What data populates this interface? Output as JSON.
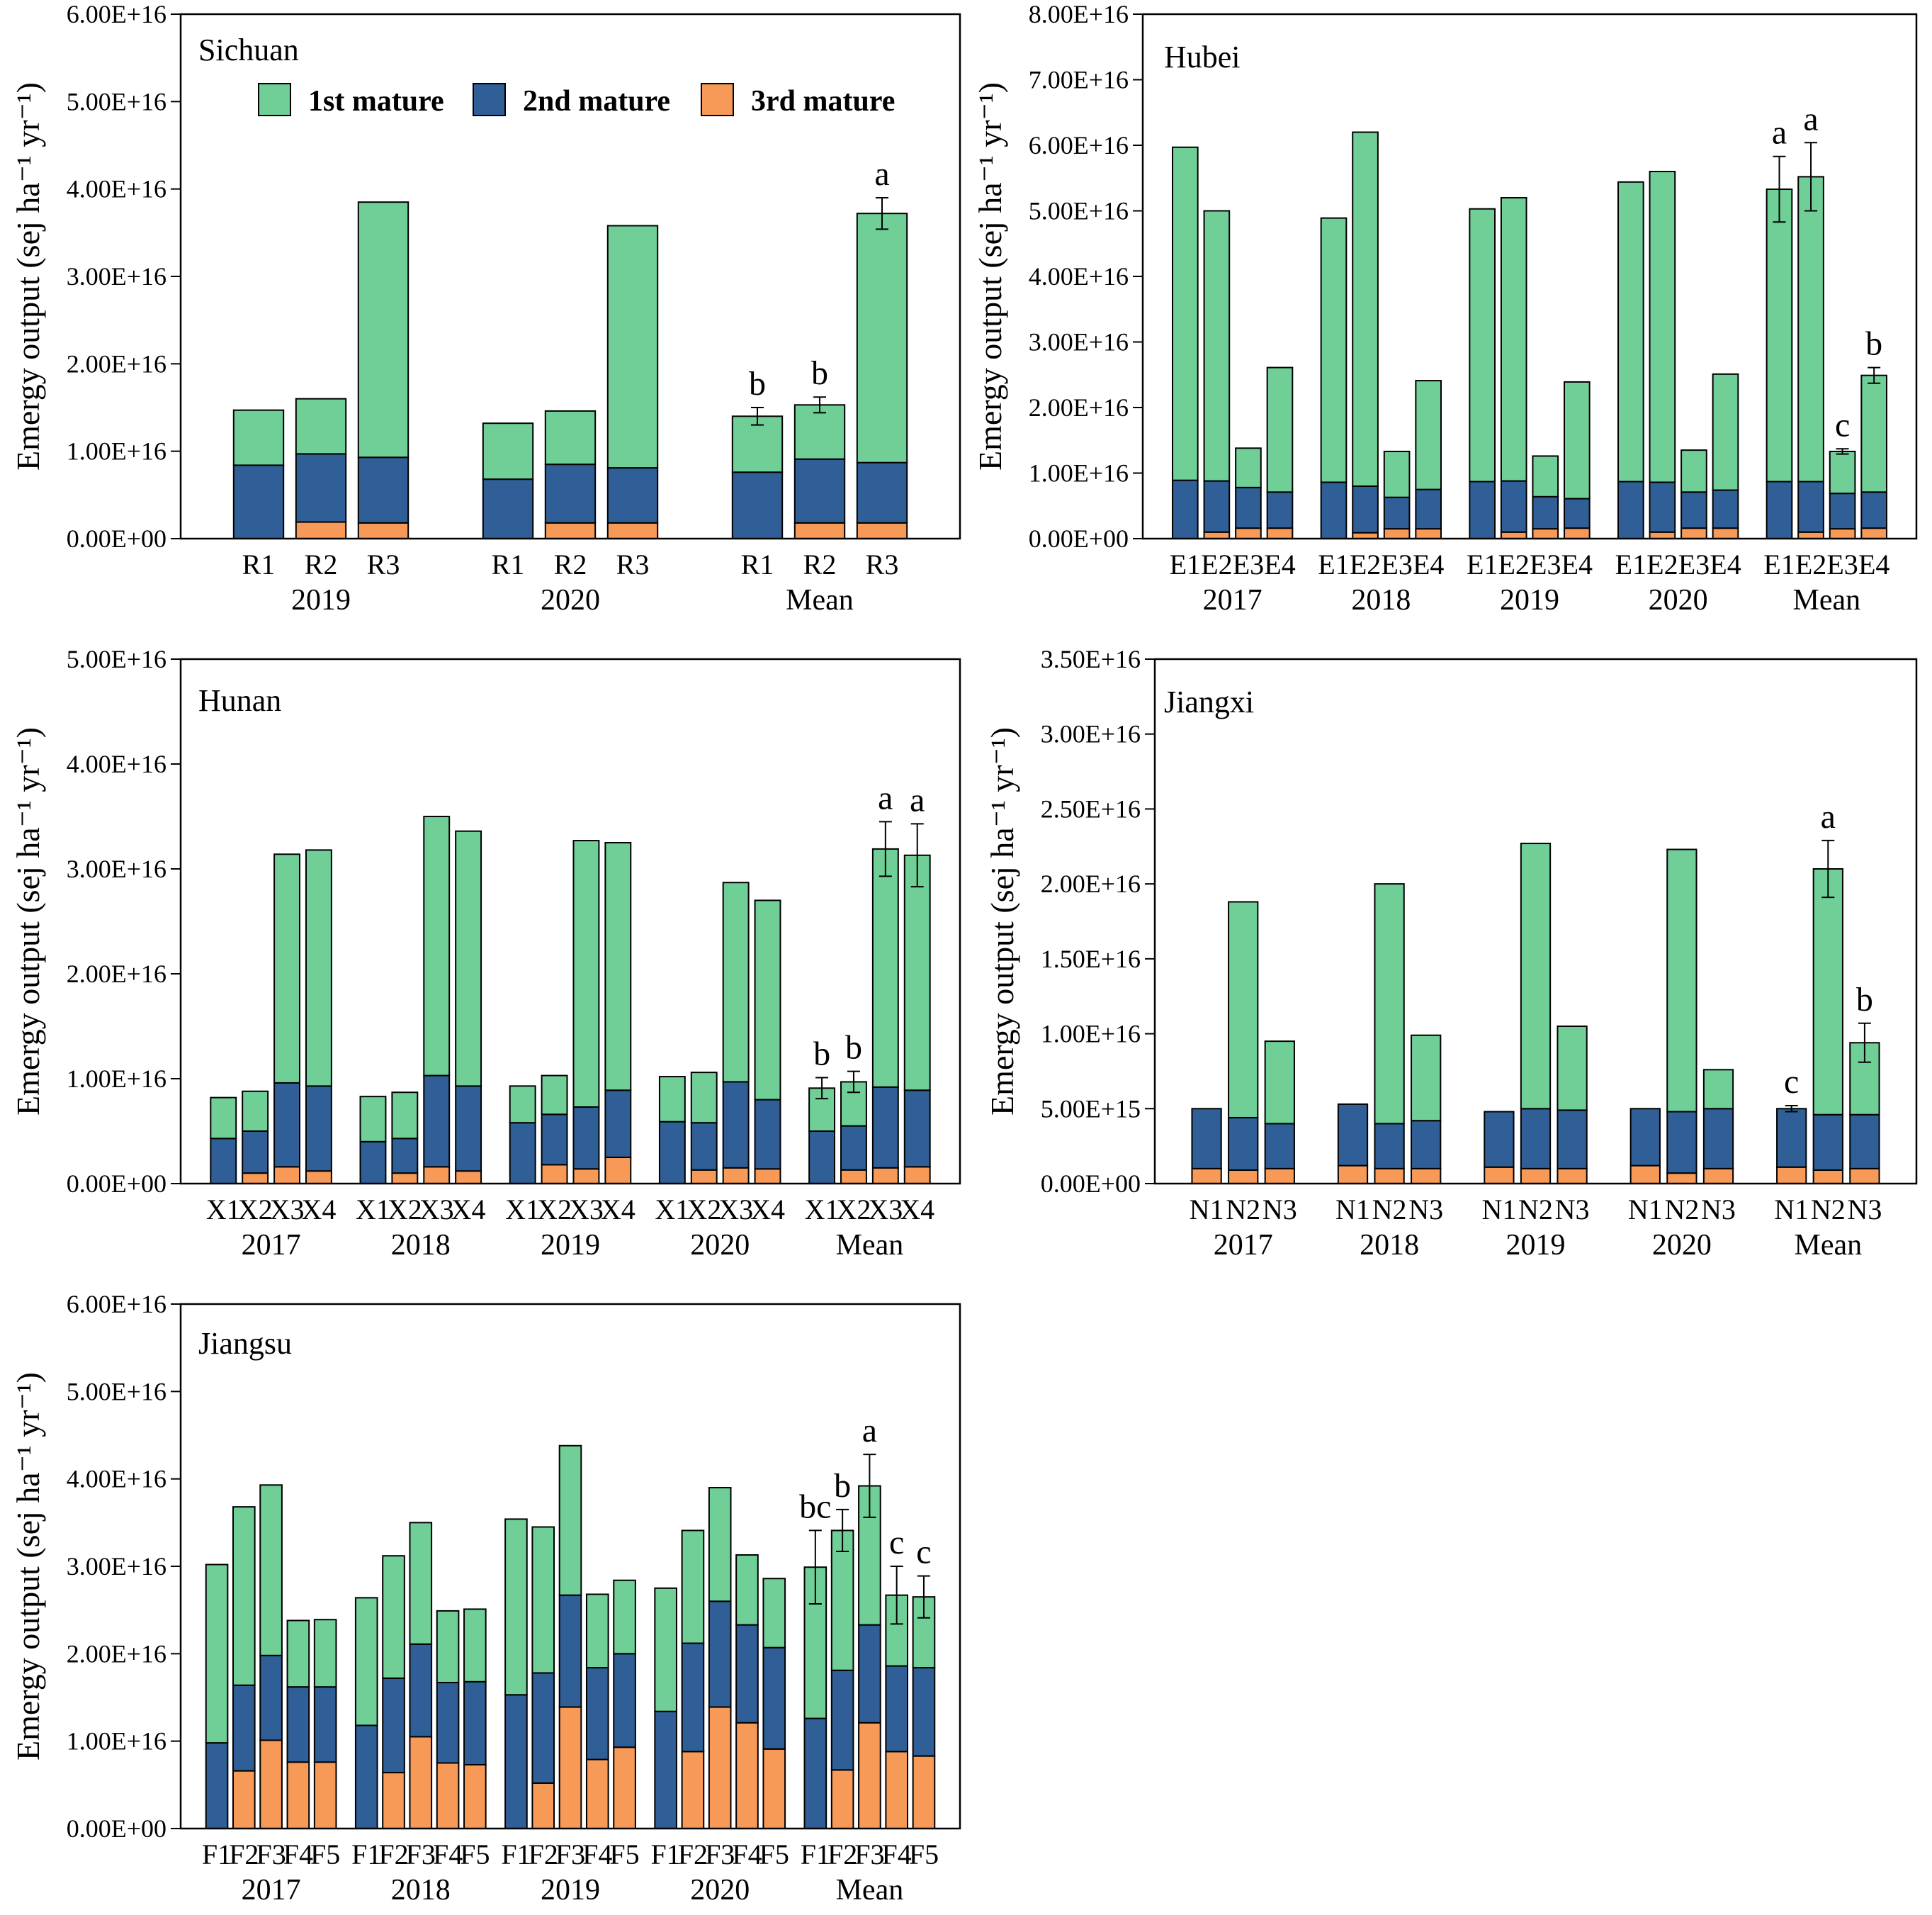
{
  "legend": {
    "labels": [
      "1st mature",
      "2nd mature",
      "3rd mature"
    ],
    "colors": [
      "#6fcf97",
      "#2f5f96",
      "#f89a57"
    ]
  },
  "chart_data": [
    {
      "type": "bar",
      "stacked": true,
      "title": "Sichuan",
      "ylabel": "Emergy output (sej ha⁻¹ yr⁻¹)",
      "ylim": [
        0,
        6e+16
      ],
      "yticks": [
        "0.00E+00",
        "1.00E+16",
        "2.00E+16",
        "3.00E+16",
        "4.00E+16",
        "5.00E+16",
        "6.00E+16"
      ],
      "legend_position": "top",
      "groups": [
        {
          "name": "2019",
          "categories": [
            "R1",
            "R2",
            "R3"
          ],
          "first": [
            6300000000000000.0,
            6300000000000000.0,
            2.92e+16
          ],
          "second": [
            8400000000000000.0,
            7800000000000000.0,
            7500000000000000.0
          ],
          "third": [
            0,
            1900000000000000.0,
            1800000000000000.0
          ]
        },
        {
          "name": "2020",
          "categories": [
            "R1",
            "R2",
            "R3"
          ],
          "first": [
            6400000000000000.0,
            6100000000000000.0,
            2.77e+16
          ],
          "second": [
            6800000000000000.0,
            6700000000000000.0,
            6300000000000000.0
          ],
          "third": [
            0,
            1800000000000000.0,
            1800000000000000.0
          ]
        },
        {
          "name": "Mean",
          "categories": [
            "R1",
            "R2",
            "R3"
          ],
          "first": [
            6400000000000000.0,
            6200000000000000.0,
            2.85e+16
          ],
          "second": [
            7600000000000000.0,
            7300000000000000.0,
            6900000000000000.0
          ],
          "third": [
            0,
            1800000000000000.0,
            1800000000000000.0
          ],
          "err": [
            1000000000000000.0,
            900000000000000.0,
            1800000000000000.0
          ],
          "sig": [
            "b",
            "b",
            "a"
          ]
        }
      ]
    },
    {
      "type": "bar",
      "stacked": true,
      "title": "Hubei",
      "ylabel": "Emergy output (sej ha⁻¹ yr⁻¹)",
      "ylim": [
        0,
        8e+16
      ],
      "yticks": [
        "0.00E+00",
        "1.00E+16",
        "2.00E+16",
        "3.00E+16",
        "4.00E+16",
        "5.00E+16",
        "6.00E+16",
        "7.00E+16",
        "8.00E+16"
      ],
      "groups": [
        {
          "name": "2017",
          "categories": [
            "E1",
            "E2",
            "E3",
            "E4"
          ],
          "first": [
            5.08e+16,
            4.12e+16,
            6000000000000000.0,
            1.9e+16
          ],
          "second": [
            8900000000000000.0,
            7800000000000000.0,
            6200000000000000.0,
            5500000000000000.0
          ],
          "third": [
            0,
            1000000000000000.0,
            1600000000000000.0,
            1600000000000000.0
          ]
        },
        {
          "name": "2018",
          "categories": [
            "E1",
            "E2",
            "E3",
            "E4"
          ],
          "first": [
            4.03e+16,
            5.4e+16,
            7000000000000000.0,
            1.66e+16
          ],
          "second": [
            8600000000000000.0,
            7100000000000000.0,
            4800000000000000.0,
            6000000000000000.0
          ],
          "third": [
            0,
            900000000000000.0,
            1500000000000000.0,
            1500000000000000.0
          ]
        },
        {
          "name": "2019",
          "categories": [
            "E1",
            "E2",
            "E3",
            "E4"
          ],
          "first": [
            4.16e+16,
            4.32e+16,
            6200000000000000.0,
            1.78e+16
          ],
          "second": [
            8700000000000000.0,
            7800000000000000.0,
            4900000000000000.0,
            4500000000000000.0
          ],
          "third": [
            0,
            1000000000000000.0,
            1500000000000000.0,
            1600000000000000.0
          ]
        },
        {
          "name": "2020",
          "categories": [
            "E1",
            "E2",
            "E3",
            "E4"
          ],
          "first": [
            4.57e+16,
            4.74e+16,
            6400000000000000.0,
            1.77e+16
          ],
          "second": [
            8700000000000000.0,
            7600000000000000.0,
            5500000000000000.0,
            5800000000000000.0
          ],
          "third": [
            0,
            1000000000000000.0,
            1600000000000000.0,
            1600000000000000.0
          ]
        },
        {
          "name": "Mean",
          "categories": [
            "E1",
            "E2",
            "E3",
            "E4"
          ],
          "first": [
            4.46e+16,
            4.65e+16,
            6400000000000000.0,
            1.78e+16
          ],
          "second": [
            8700000000000000.0,
            7700000000000000.0,
            5400000000000000.0,
            5500000000000000.0
          ],
          "third": [
            0,
            1000000000000000.0,
            1500000000000000.0,
            1600000000000000.0
          ],
          "err": [
            5000000000000000.0,
            5200000000000000.0,
            400000000000000.0,
            1200000000000000.0
          ],
          "sig": [
            "a",
            "a",
            "c",
            "b"
          ]
        }
      ]
    },
    {
      "type": "bar",
      "stacked": true,
      "title": "Hunan",
      "ylabel": "Emergy output (sej ha⁻¹ yr⁻¹)",
      "ylim": [
        0,
        5e+16
      ],
      "yticks": [
        "0.00E+00",
        "1.00E+16",
        "2.00E+16",
        "3.00E+16",
        "4.00E+16",
        "5.00E+16"
      ],
      "groups": [
        {
          "name": "2017",
          "categories": [
            "X1",
            "X2",
            "X3",
            "X4"
          ],
          "first": [
            3900000000000000.0,
            3800000000000000.0,
            2.18e+16,
            2.25e+16
          ],
          "second": [
            4300000000000000.0,
            4000000000000000.0,
            8000000000000000.0,
            8100000000000000.0
          ],
          "third": [
            0,
            1000000000000000.0,
            1600000000000000.0,
            1200000000000000.0
          ]
        },
        {
          "name": "2018",
          "categories": [
            "X1",
            "X2",
            "X3",
            "X4"
          ],
          "first": [
            4300000000000000.0,
            4400000000000000.0,
            2.47e+16,
            2.43e+16
          ],
          "second": [
            4000000000000000.0,
            3300000000000000.0,
            8700000000000000.0,
            8100000000000000.0
          ],
          "third": [
            0,
            1000000000000000.0,
            1600000000000000.0,
            1200000000000000.0
          ]
        },
        {
          "name": "2019",
          "categories": [
            "X1",
            "X2",
            "X3",
            "X4"
          ],
          "first": [
            3500000000000000.0,
            3700000000000000.0,
            2.54e+16,
            2.36e+16
          ],
          "second": [
            5800000000000000.0,
            4800000000000000.0,
            5900000000000000.0,
            6400000000000000.0
          ],
          "third": [
            0,
            1800000000000000.0,
            1400000000000000.0,
            2500000000000000.0
          ]
        },
        {
          "name": "2020",
          "categories": [
            "X1",
            "X2",
            "X3",
            "X4"
          ],
          "first": [
            4300000000000000.0,
            4800000000000000.0,
            1.9e+16,
            1.9e+16
          ],
          "second": [
            5900000000000000.0,
            4500000000000000.0,
            8200000000000000.0,
            6600000000000000.0
          ],
          "third": [
            0,
            1300000000000000.0,
            1500000000000000.0,
            1400000000000000.0
          ]
        },
        {
          "name": "Mean",
          "categories": [
            "X1",
            "X2",
            "X3",
            "X4"
          ],
          "first": [
            4100000000000000.0,
            4200000000000000.0,
            2.27e+16,
            2.24e+16
          ],
          "second": [
            5000000000000000.0,
            4200000000000000.0,
            7700000000000000.0,
            7300000000000000.0
          ],
          "third": [
            0,
            1300000000000000.0,
            1500000000000000.0,
            1600000000000000.0
          ],
          "err": [
            1000000000000000.0,
            1000000000000000.0,
            2600000000000000.0,
            3000000000000000.0
          ],
          "sig": [
            "b",
            "b",
            "a",
            "a"
          ]
        }
      ]
    },
    {
      "type": "bar",
      "stacked": true,
      "title": "Jiangxi",
      "ylabel": "Emergy output (sej ha⁻¹ yr⁻¹)",
      "ylim": [
        0,
        3.5e+16
      ],
      "yticks": [
        "0.00E+00",
        "5.00E+15",
        "1.00E+16",
        "1.50E+16",
        "2.00E+16",
        "2.50E+16",
        "3.00E+16",
        "3.50E+16"
      ],
      "groups": [
        {
          "name": "2017",
          "categories": [
            "N1",
            "N2",
            "N3"
          ],
          "first": [
            0,
            1.44e+16,
            5500000000000000.0
          ],
          "second": [
            4000000000000000.0,
            3500000000000000.0,
            3000000000000000.0
          ],
          "third": [
            1000000000000000.0,
            900000000000000.0,
            1000000000000000.0
          ]
        },
        {
          "name": "2018",
          "categories": [
            "N1",
            "N2",
            "N3"
          ],
          "first": [
            0,
            1.6e+16,
            5700000000000000.0
          ],
          "second": [
            4100000000000000.0,
            3000000000000000.0,
            3200000000000000.0
          ],
          "third": [
            1200000000000000.0,
            1000000000000000.0,
            1000000000000000.0
          ]
        },
        {
          "name": "2019",
          "categories": [
            "N1",
            "N2",
            "N3"
          ],
          "first": [
            0,
            1.77e+16,
            5600000000000000.0
          ],
          "second": [
            3700000000000000.0,
            4000000000000000.0,
            3900000000000000.0
          ],
          "third": [
            1100000000000000.0,
            1000000000000000.0,
            1000000000000000.0
          ]
        },
        {
          "name": "2020",
          "categories": [
            "N1",
            "N2",
            "N3"
          ],
          "first": [
            0,
            1.75e+16,
            2600000000000000.0
          ],
          "second": [
            3800000000000000.0,
            4100000000000000.0,
            4000000000000000.0
          ],
          "third": [
            1200000000000000.0,
            700000000000000.0,
            1000000000000000.0
          ]
        },
        {
          "name": "Mean",
          "categories": [
            "N1",
            "N2",
            "N3"
          ],
          "first": [
            0,
            1.64e+16,
            4800000000000000.0
          ],
          "second": [
            3900000000000000.0,
            3700000000000000.0,
            3600000000000000.0
          ],
          "third": [
            1100000000000000.0,
            900000000000000.0,
            1000000000000000.0
          ],
          "err": [
            200000000000000.0,
            1900000000000000.0,
            1300000000000000.0
          ],
          "sig": [
            "c",
            "a",
            "b"
          ]
        }
      ]
    },
    {
      "type": "bar",
      "stacked": true,
      "title": "Jiangsu",
      "ylabel": "Emergy output (sej ha⁻¹ yr⁻¹)",
      "ylim": [
        0,
        6e+16
      ],
      "yticks": [
        "0.00E+00",
        "1.00E+16",
        "2.00E+16",
        "3.00E+16",
        "4.00E+16",
        "5.00E+16",
        "6.00E+16"
      ],
      "groups": [
        {
          "name": "2017",
          "categories": [
            "F1",
            "F2",
            "F3",
            "F4",
            "F5"
          ],
          "first": [
            2.04e+16,
            2.04e+16,
            1.95e+16,
            7600000000000000.0,
            7700000000000000.0
          ],
          "second": [
            9800000000000000.0,
            9800000000000000.0,
            9700000000000000.0,
            8600000000000000.0,
            8600000000000000.0
          ],
          "third": [
            0,
            6600000000000000.0,
            1.01e+16,
            7600000000000000.0,
            7600000000000000.0
          ]
        },
        {
          "name": "2018",
          "categories": [
            "F1",
            "F2",
            "F3",
            "F4",
            "F5"
          ],
          "first": [
            1.46e+16,
            1.4e+16,
            1.39e+16,
            8200000000000000.0,
            8300000000000000.0
          ],
          "second": [
            1.18e+16,
            1.08e+16,
            1.06e+16,
            9200000000000000.0,
            9500000000000000.0
          ],
          "third": [
            0,
            6400000000000000.0,
            1.05e+16,
            7500000000000000.0,
            7300000000000000.0
          ]
        },
        {
          "name": "2019",
          "categories": [
            "F1",
            "F2",
            "F3",
            "F4",
            "F5"
          ],
          "first": [
            2.01e+16,
            1.67e+16,
            1.71e+16,
            8400000000000000.0,
            8400000000000000.0
          ],
          "second": [
            1.53e+16,
            1.26e+16,
            1.28e+16,
            1.05e+16,
            1.07e+16
          ],
          "third": [
            0,
            5200000000000000.0,
            1.39e+16,
            7900000000000000.0,
            9300000000000000.0
          ]
        },
        {
          "name": "2020",
          "categories": [
            "F1",
            "F2",
            "F3",
            "F4",
            "F5"
          ],
          "first": [
            1.41e+16,
            1.29e+16,
            1.3e+16,
            8000000000000000.0,
            7900000000000000.0
          ],
          "second": [
            1.34e+16,
            1.24e+16,
            1.21e+16,
            1.12e+16,
            1.16e+16
          ],
          "third": [
            0,
            8800000000000000.0,
            1.39e+16,
            1.21e+16,
            9100000000000000.0
          ]
        },
        {
          "name": "Mean",
          "categories": [
            "F1",
            "F2",
            "F3",
            "F4",
            "F5"
          ],
          "first": [
            1.73e+16,
            1.6e+16,
            1.59e+16,
            8100000000000000.0,
            8100000000000000.0
          ],
          "second": [
            1.26e+16,
            1.14e+16,
            1.12e+16,
            9800000000000000.0,
            1.01e+16
          ],
          "third": [
            0,
            6700000000000000.0,
            1.21e+16,
            8800000000000000.0,
            8300000000000000.0
          ],
          "err": [
            4200000000000000.0,
            2400000000000000.0,
            3600000000000000.0,
            3300000000000000.0,
            2400000000000000.0
          ],
          "sig": [
            "bc",
            "b",
            "a",
            "c",
            "c"
          ]
        }
      ]
    }
  ]
}
